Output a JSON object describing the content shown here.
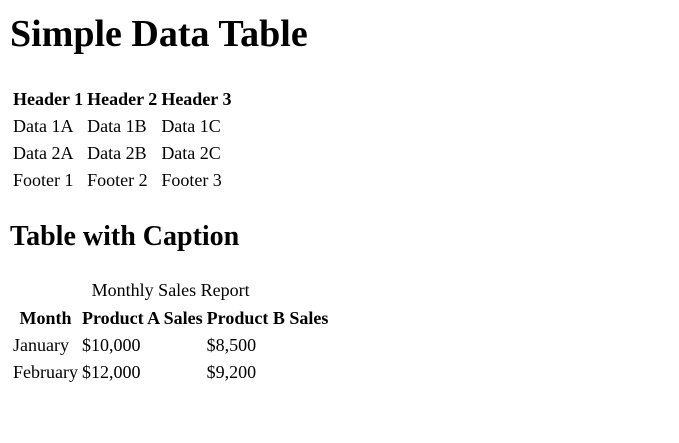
{
  "simple": {
    "heading": "Simple Data Table",
    "headers": [
      "Header 1",
      "Header 2",
      "Header 3"
    ],
    "rows": [
      [
        "Data 1A",
        "Data 1B",
        "Data 1C"
      ],
      [
        "Data 2A",
        "Data 2B",
        "Data 2C"
      ]
    ],
    "footer": [
      "Footer 1",
      "Footer 2",
      "Footer 3"
    ]
  },
  "captioned": {
    "heading": "Table with Caption",
    "caption": "Monthly Sales Report",
    "headers": [
      "Month",
      "Product A Sales",
      "Product B Sales"
    ],
    "rows": [
      [
        "January",
        "$10,000",
        "$8,500"
      ],
      [
        "February",
        "$12,000",
        "$9,200"
      ]
    ]
  }
}
